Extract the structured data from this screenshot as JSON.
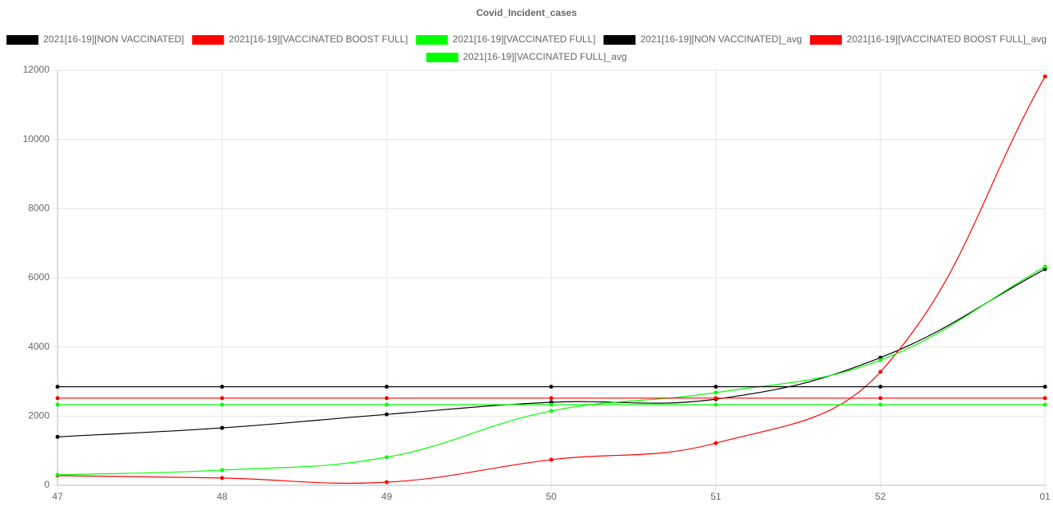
{
  "chart_data": {
    "type": "line",
    "title": "Covid_Incident_cases",
    "categories": [
      "47",
      "48",
      "49",
      "50",
      "51",
      "52",
      "01"
    ],
    "series": [
      {
        "name": "2021[16-19][NON VACCINATED]",
        "color": "#000000",
        "values": [
          1400,
          1660,
          2050,
          2400,
          2490,
          3690,
          6250
        ]
      },
      {
        "name": "2021[16-19][VACCINATED BOOST FULL]",
        "color": "#ff0000",
        "values": [
          280,
          210,
          90,
          740,
          1220,
          3280,
          11820
        ]
      },
      {
        "name": "2021[16-19][VACCINATED FULL]",
        "color": "#00ff00",
        "values": [
          300,
          440,
          810,
          2150,
          2680,
          3620,
          6320
        ]
      },
      {
        "name": "2021[16-19][NON VACCINATED]_avg",
        "color": "#000000",
        "values": [
          2850,
          2850,
          2850,
          2850,
          2850,
          2850,
          2850
        ]
      },
      {
        "name": "2021[16-19][VACCINATED BOOST FULL]_avg",
        "color": "#ff0000",
        "values": [
          2520,
          2520,
          2520,
          2520,
          2520,
          2520,
          2520
        ]
      },
      {
        "name": "2021[16-19][VACCINATED FULL]_avg",
        "color": "#00ff00",
        "values": [
          2330,
          2330,
          2330,
          2330,
          2330,
          2330,
          2330
        ]
      }
    ],
    "ylim": [
      0,
      12000
    ],
    "yticks": [
      0,
      2000,
      4000,
      6000,
      8000,
      10000,
      12000
    ],
    "grid": true,
    "legend": "top"
  }
}
